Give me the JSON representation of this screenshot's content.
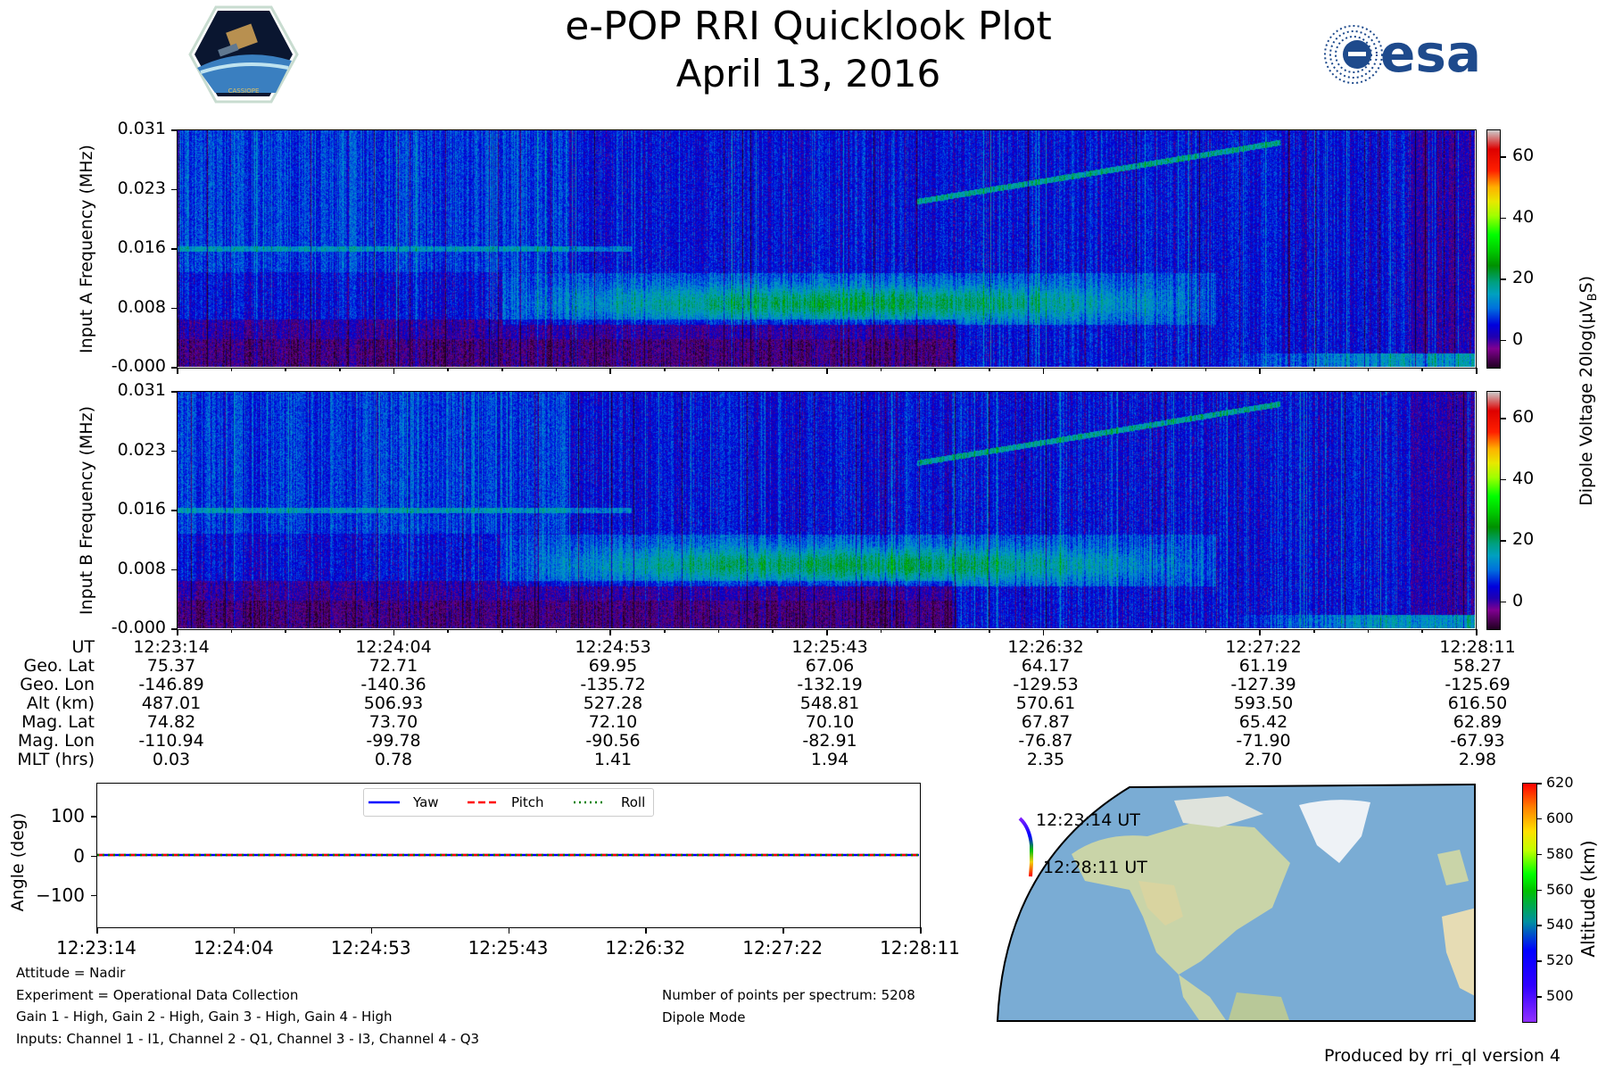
{
  "header": {
    "title": "e-POP RRI Quicklook Plot",
    "date": "April 13, 2016",
    "left_logo_text": "CASSIOPE",
    "right_logo_text": "esa"
  },
  "chart_data": [
    {
      "type": "heatmap",
      "name": "Input A",
      "ylabel": "Input A Frequency (MHz)",
      "yticks": [
        "0.031",
        "0.023",
        "0.016",
        "0.008",
        "-0.000"
      ],
      "ylim": [
        0,
        0.031
      ],
      "xticks": [
        "12:23:14",
        "12:24:04",
        "12:24:53",
        "12:25:43",
        "12:26:32",
        "12:27:22",
        "12:28:11"
      ],
      "colorbar": {
        "ticks": [
          "60",
          "40",
          "20",
          "0"
        ],
        "range": [
          -9.4,
          68.8
        ],
        "label": "Dipole Voltage 20log(μV",
        "label_sub": "B",
        "label_end": "S)"
      }
    },
    {
      "type": "heatmap",
      "name": "Input B",
      "ylabel": "Input B Frequency (MHz)",
      "yticks": [
        "0.031",
        "0.023",
        "0.016",
        "0.008",
        "-0.000"
      ],
      "ylim": [
        0,
        0.031
      ],
      "colorbar": {
        "ticks": [
          "60",
          "40",
          "20",
          "0"
        ],
        "range": [
          -9.4,
          68.8
        ]
      }
    },
    {
      "type": "line",
      "name": "Attitude",
      "ylabel": "Angle (deg)",
      "yticks": [
        "100",
        "0",
        "−100"
      ],
      "ytick_values": [
        100,
        0,
        -100
      ],
      "ylim": [
        -180,
        180
      ],
      "xticks": [
        "12:23:14",
        "12:24:04",
        "12:24:53",
        "12:25:43",
        "12:26:32",
        "12:27:22",
        "12:28:11"
      ],
      "series": [
        {
          "name": "Yaw",
          "color": "#0000ff",
          "style": "solid",
          "values": [
            0,
            0,
            0,
            0,
            0,
            0,
            0
          ]
        },
        {
          "name": "Pitch",
          "color": "#ff0000",
          "style": "dashed",
          "values": [
            0,
            0,
            0,
            0,
            0,
            0,
            0
          ]
        },
        {
          "name": "Roll",
          "color": "#008000",
          "style": "dotted",
          "values": [
            0,
            0,
            0,
            0,
            0,
            0,
            0
          ]
        }
      ]
    },
    {
      "type": "scatter",
      "name": "Ground track map",
      "start_label": "12:23:14 UT",
      "end_label": "12:28:11 UT",
      "colorbar": {
        "label": "Altitude (km)",
        "ticks": [
          "620",
          "600",
          "580",
          "560",
          "540",
          "520",
          "500"
        ],
        "tick_values": [
          620,
          600,
          580,
          560,
          540,
          520,
          500
        ],
        "range": [
          485,
          620
        ]
      }
    }
  ],
  "ephemeris": {
    "row_labels": [
      "UT",
      "Geo. Lat",
      "Geo. Lon",
      "Alt (km)",
      "Mag. Lat",
      "Mag. Lon",
      "MLT (hrs)"
    ],
    "columns": [
      [
        "12:23:14",
        "75.37",
        "-146.89",
        "487.01",
        "74.82",
        "-110.94",
        "0.03"
      ],
      [
        "12:24:04",
        "72.71",
        "-140.36",
        "506.93",
        "73.70",
        "-99.78",
        "0.78"
      ],
      [
        "12:24:53",
        "69.95",
        "-135.72",
        "527.28",
        "72.10",
        "-90.56",
        "1.41"
      ],
      [
        "12:25:43",
        "67.06",
        "-132.19",
        "548.81",
        "70.10",
        "-82.91",
        "1.94"
      ],
      [
        "12:26:32",
        "64.17",
        "-129.53",
        "570.61",
        "67.87",
        "-76.87",
        "2.35"
      ],
      [
        "12:27:22",
        "61.19",
        "-127.39",
        "593.50",
        "65.42",
        "-71.90",
        "2.70"
      ],
      [
        "12:28:11",
        "58.27",
        "-125.69",
        "616.50",
        "62.89",
        "-67.93",
        "2.98"
      ]
    ]
  },
  "footer": {
    "left": [
      "Attitude = Nadir",
      "Experiment = Operational Data Collection",
      "Gain 1 - High, Gain 2 - High, Gain 3 - High, Gain 4 - High",
      "Inputs: Channel 1 - I1, Channel 2 - Q1, Channel 3 - I3, Channel 4 - Q3"
    ],
    "right": [
      "Number of points per spectrum: 5208",
      "Dipole Mode"
    ],
    "produced": "Produced by rri_ql version 4"
  }
}
